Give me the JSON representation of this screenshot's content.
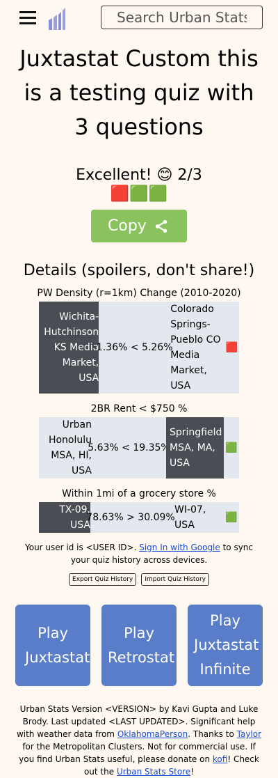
{
  "search": {
    "placeholder": "Search Urban Stats"
  },
  "title": "Juxtastat Custom this is a testing quiz with 3 questions",
  "score": "Excellent! 😊 2/3",
  "emoji_summary": "🟥🟩🟩",
  "copy_label": "Copy",
  "details_heading": "Details (spoilers, don't share!)",
  "questions": [
    {
      "label": "PW Density (r=1km) Change (2010-2020)",
      "a": "Wichita-Hutchinson KS Media Market, USA",
      "comparison": "-1.36% < 5.26%",
      "b": "Colorado Springs-Pueblo CO Media Market, USA",
      "result": "🟥"
    },
    {
      "label": "2BR Rent < $750 %",
      "a": "Urban Honolulu MSA, HI, USA",
      "comparison": "5.63% < 19.35%",
      "b": "Springfield MSA, MA, USA",
      "result": "🟩"
    },
    {
      "label": "Within 1mi of a grocery store %",
      "a": "TX-09, USA",
      "comparison": "78.63% > 30.09%",
      "b": "WI-07, USA",
      "result": "🟩"
    }
  ],
  "user": {
    "prefix": "Your user id is <USER ID>. ",
    "sign_in": "Sign In with Google",
    "suffix": " to sync your quiz history across devices."
  },
  "export_label": "Export Quiz History",
  "import_label": "Import Quiz History",
  "play": {
    "juxtastat": "Play Juxtastat",
    "retrostat": "Play Retrostat",
    "infinite": "Play Juxtastat Infinite"
  },
  "footer": {
    "t1": "Urban Stats Version <VERSION> by Kavi Gupta and Luke Brody. Last updated <LAST UPDATED>. Significant help with weather data from ",
    "l1": "OklahomaPerson",
    "t2": ". Thanks to ",
    "l2": "Taylor",
    "t3": " for the Metropolitan Clusters. Not for commercial use. If you find Urban Stats useful, please donate on ",
    "l3": "kofi",
    "t4": "! Check out the ",
    "l4": "Urban Stats Store",
    "t5": "!"
  },
  "colors": {
    "background": "#fff8f0",
    "copy": "#8ac35e",
    "play": "#5a7dc9",
    "dark_cell": "#4a4d54",
    "light_cell": "#e3e7ee"
  }
}
